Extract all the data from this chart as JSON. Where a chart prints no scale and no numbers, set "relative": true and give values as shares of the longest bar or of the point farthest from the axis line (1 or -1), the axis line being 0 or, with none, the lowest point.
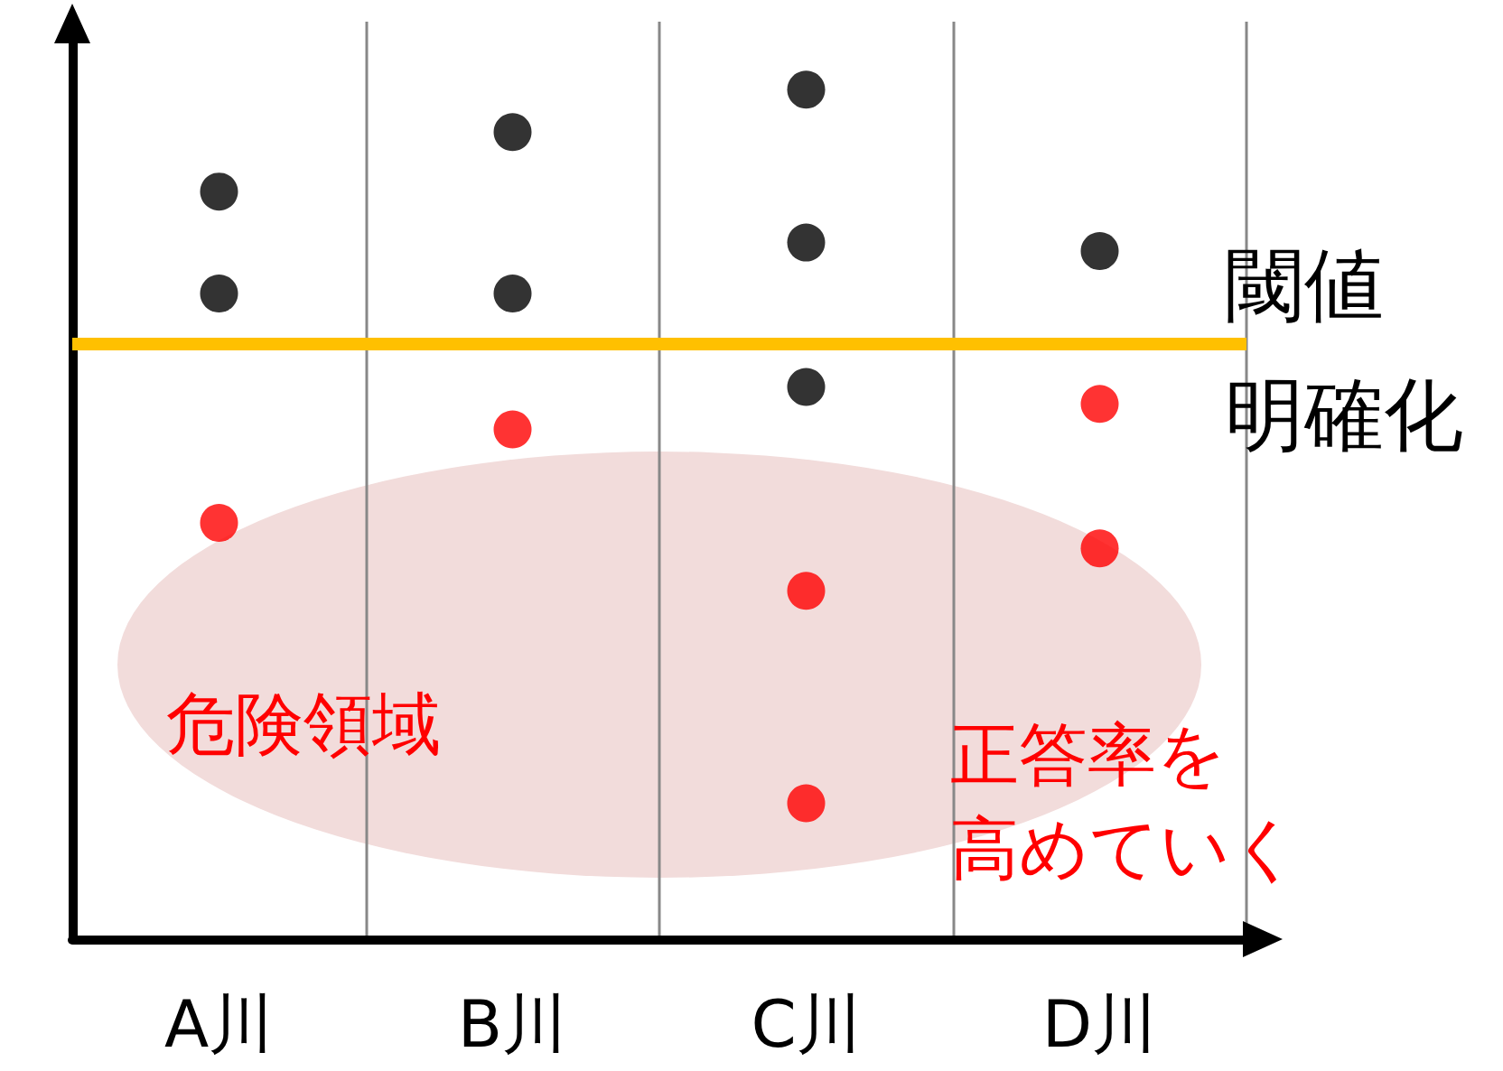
{
  "chart_data": {
    "type": "scatter",
    "relative": true,
    "categories": [
      "A川",
      "B川",
      "C川",
      "D川"
    ],
    "series": [
      {
        "color": "#000000",
        "x": [
          "A川",
          "A川",
          "B川",
          "B川",
          "C川",
          "C川",
          "C川",
          "D川"
        ],
        "values": [
          0.88,
          0.76,
          0.95,
          0.76,
          1.0,
          0.82,
          0.65,
          0.81
        ]
      },
      {
        "color": "#ff0000",
        "x": [
          "A川",
          "B川",
          "C川",
          "C川",
          "D川",
          "D川"
        ],
        "values": [
          0.49,
          0.6,
          0.41,
          0.16,
          0.63,
          0.46
        ]
      }
    ],
    "ref_lines": [
      {
        "axis": "y",
        "value": 0.7,
        "label": "閾値明確化",
        "color": "#ffc000"
      }
    ],
    "annotations": [
      "危険領域",
      "正答率を",
      "高めていく"
    ],
    "grid": "x",
    "marker": "circle"
  }
}
